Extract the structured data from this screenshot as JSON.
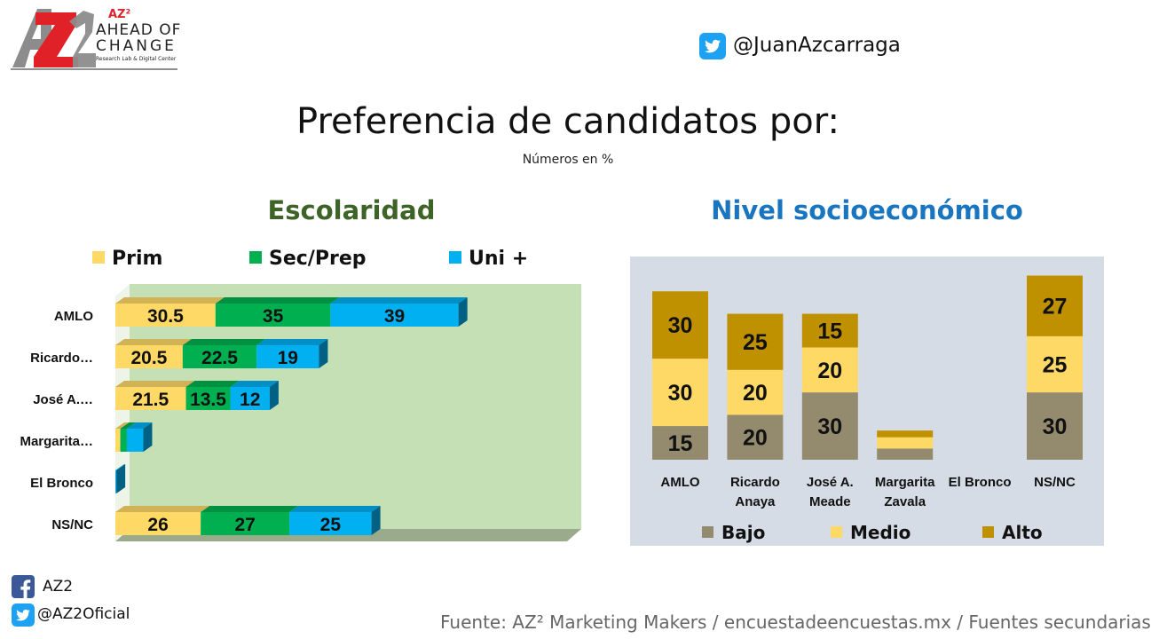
{
  "logo": {
    "mark": "AZ2",
    "brand": "AZ²",
    "line1": "AHEAD OF",
    "line2": "CHANGE",
    "line3": "Research Lab & Digital Center"
  },
  "header": {
    "twitter_handle": "@JuanAzcarraga",
    "title": "Preferencia de candidatos por:",
    "subtitle": "Números en %"
  },
  "left_section": {
    "title": "Escolaridad",
    "legend": [
      "Prim",
      "Sec/Prep",
      "Uni +"
    ]
  },
  "right_section": {
    "title": "Nivel socioeconómico",
    "legend": [
      "Bajo",
      "Medio",
      "Alto"
    ]
  },
  "chart_data": [
    {
      "type": "bar",
      "orientation": "horizontal",
      "stacked": true,
      "style": "3d",
      "categories": [
        "AMLO",
        "Ricardo…",
        "José A.…",
        "Margarita…",
        "El Bronco",
        "NS/NC"
      ],
      "series": [
        {
          "name": "Prim",
          "color": "#ffd966",
          "values": [
            30.5,
            20.5,
            21.5,
            1.5,
            0,
            26
          ]
        },
        {
          "name": "Sec/Prep",
          "color": "#00b050",
          "values": [
            35,
            22.5,
            13.5,
            2,
            0,
            27
          ]
        },
        {
          "name": "Uni +",
          "color": "#00b0f0",
          "values": [
            39,
            19,
            12,
            5,
            0.3,
            25
          ]
        }
      ],
      "labeled_values": [
        [
          "30.5",
          "35",
          "39"
        ],
        [
          "20.5",
          "22.5",
          "19"
        ],
        [
          "21.5",
          "13.5",
          "12"
        ],
        [
          "",
          "",
          ""
        ],
        [
          "",
          "",
          ""
        ],
        [
          "26",
          "27",
          "25"
        ]
      ],
      "xlim": [
        0,
        120
      ],
      "legend_position": "top",
      "plot_background": "#c5e0b4"
    },
    {
      "type": "bar",
      "orientation": "vertical",
      "stacked": true,
      "categories": [
        "AMLO",
        "Ricardo Anaya",
        "José A. Meade",
        "Margarita Zavala",
        "El Bronco",
        "NS/NC"
      ],
      "category_lines": [
        [
          "AMLO"
        ],
        [
          "Ricardo",
          "Anaya"
        ],
        [
          "José A.",
          "Meade"
        ],
        [
          "Margarita",
          "Zavala"
        ],
        [
          "El Bronco"
        ],
        [
          "NS/NC"
        ]
      ],
      "series": [
        {
          "name": "Bajo",
          "color": "#948a6e",
          "values": [
            15,
            20,
            30,
            5,
            0,
            30
          ]
        },
        {
          "name": "Medio",
          "color": "#ffd966",
          "values": [
            30,
            20,
            20,
            5,
            0,
            25
          ]
        },
        {
          "name": "Alto",
          "color": "#bf9000",
          "values": [
            30,
            25,
            15,
            3,
            0,
            27
          ]
        }
      ],
      "labeled_values": [
        [
          "15",
          "30",
          "30"
        ],
        [
          "20",
          "20",
          "25"
        ],
        [
          "30",
          "20",
          "15"
        ],
        [
          "",
          "",
          ""
        ],
        [
          "",
          "",
          ""
        ],
        [
          "30",
          "25",
          "27"
        ]
      ],
      "ylim": [
        0,
        85
      ],
      "legend_position": "bottom",
      "plot_background": "#d6dce5"
    }
  ],
  "footer": {
    "facebook_label": "AZ2",
    "twitter_handle": "@AZ2Oficial",
    "source": "Fuente: AZ² Marketing Makers / encuestadeencuestas.mx / Fuentes secundarias"
  },
  "colors": {
    "left_title": "#3d6426",
    "right_title": "#1a75c0",
    "twitter": "#1da1f2",
    "facebook": "#3b5998"
  }
}
